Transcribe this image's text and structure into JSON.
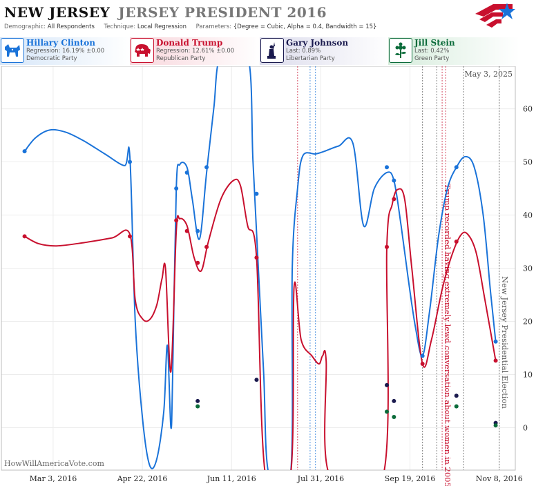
{
  "header": {
    "title": "NEW JERSEY",
    "subtitle": "JERSEY PRESIDENT 2016",
    "demographic_label": "Demographic:",
    "demographic_value": "All Respondents",
    "technique_label": "Technique:",
    "technique_value": "Local Regression",
    "parameters_label": "Parameters:",
    "parameters_value": "{Degree = Cubic, Alpha = 0.4, Bandwidth = 15}"
  },
  "candidates": [
    {
      "name": "Hillary Clinton",
      "line1": "Regression: 16.19% ±0.00",
      "line2": "Democratic Party",
      "color": "#1a73d9",
      "icon": "donkey-icon"
    },
    {
      "name": "Donald Trump",
      "line1": "Regression: 12.61% ±0.00",
      "line2": "Republican Party",
      "color": "#c8102e",
      "icon": "elephant-icon"
    },
    {
      "name": "Gary Johnson",
      "line1": "Last: 0.89%",
      "line2": "Libertarian Party",
      "color": "#1a1a4e",
      "icon": "statue-of-liberty-icon"
    },
    {
      "name": "Jill Stein",
      "line1": "Last: 0.42%",
      "line2": "Green Party",
      "color": "#0b6b3a",
      "icon": "flower-icon"
    }
  ],
  "watermark": "HowWillAmericaVote.com",
  "chart_data": {
    "type": "line",
    "date_label": "May 3, 2025",
    "x_range": [
      "2016-02-03",
      "2016-11-17"
    ],
    "ylim": [
      -8,
      68
    ],
    "y_ticks": [
      0,
      10,
      20,
      30,
      40,
      50,
      60
    ],
    "x_ticks": [
      {
        "date": "2016-03-03",
        "label": "Mar 3, 2016"
      },
      {
        "date": "2016-04-22",
        "label": "Apr 22, 2016"
      },
      {
        "date": "2016-06-11",
        "label": "Jun 11, 2016"
      },
      {
        "date": "2016-07-31",
        "label": "Jul 31, 2016"
      },
      {
        "date": "2016-09-19",
        "label": "Sep 19, 2016"
      },
      {
        "date": "2016-11-08",
        "label": "Nov 8, 2016"
      }
    ],
    "annotations": [
      {
        "date": "2016-10-07",
        "text": "Trump recorded having extremely lewd conversation about women in 2005",
        "color": "#c8102e"
      },
      {
        "date": "2016-11-08",
        "text": "New Jersey Presidential Election",
        "color": "#555555"
      }
    ],
    "event_lines": [
      {
        "date": "2016-07-18",
        "color": "#c8102e"
      },
      {
        "date": "2016-07-25",
        "color": "#1a73d9"
      },
      {
        "date": "2016-07-28",
        "color": "#1a73d9"
      },
      {
        "date": "2016-09-26",
        "color": "#555555"
      },
      {
        "date": "2016-10-04",
        "color": "#555555"
      },
      {
        "date": "2016-10-07",
        "color": "#c8102e"
      },
      {
        "date": "2016-10-09",
        "color": "#c8102e"
      },
      {
        "date": "2016-10-19",
        "color": "#555555"
      },
      {
        "date": "2016-11-08",
        "color": "#555555"
      }
    ],
    "series": [
      {
        "name": "Hillary Clinton",
        "color": "#1a73d9",
        "points": [
          {
            "x": "2016-02-16",
            "y": 52
          },
          {
            "x": "2016-04-15",
            "y": 50
          },
          {
            "x": "2016-05-11",
            "y": 45
          },
          {
            "x": "2016-05-17",
            "y": 48
          },
          {
            "x": "2016-05-23",
            "y": 37
          },
          {
            "x": "2016-05-28",
            "y": 49
          },
          {
            "x": "2016-06-25",
            "y": 44
          },
          {
            "x": "2016-09-06",
            "y": 49
          },
          {
            "x": "2016-09-10",
            "y": 46.5
          },
          {
            "x": "2016-09-26",
            "y": 13.5
          },
          {
            "x": "2016-10-15",
            "y": 49
          },
          {
            "x": "2016-11-06",
            "y": 16.19
          }
        ],
        "curve": [
          [
            "2016-02-16",
            52
          ],
          [
            "2016-02-22",
            54.5
          ],
          [
            "2016-03-01",
            56
          ],
          [
            "2016-03-10",
            55.6
          ],
          [
            "2016-03-20",
            54
          ],
          [
            "2016-04-01",
            51.5
          ],
          [
            "2016-04-12",
            49.3
          ],
          [
            "2016-04-15",
            51
          ],
          [
            "2016-04-18",
            20
          ],
          [
            "2016-04-22",
            2
          ],
          [
            "2016-04-26",
            -7
          ],
          [
            "2016-04-30",
            -6
          ],
          [
            "2016-05-04",
            3
          ],
          [
            "2016-05-06",
            15.5
          ],
          [
            "2016-05-08",
            0
          ],
          [
            "2016-05-09",
            10
          ],
          [
            "2016-05-11",
            45
          ],
          [
            "2016-05-13",
            49.5
          ],
          [
            "2016-05-17",
            49
          ],
          [
            "2016-05-20",
            43
          ],
          [
            "2016-05-24",
            35.5
          ],
          [
            "2016-05-28",
            48
          ],
          [
            "2016-06-01",
            60
          ],
          [
            "2016-06-05",
            70
          ],
          [
            "2016-06-20",
            70
          ],
          [
            "2016-06-23",
            50
          ],
          [
            "2016-06-26",
            30
          ],
          [
            "2016-06-29",
            10
          ],
          [
            "2016-07-02",
            -9
          ],
          [
            "2016-07-14",
            -9
          ],
          [
            "2016-07-15",
            30
          ],
          [
            "2016-07-18",
            45
          ],
          [
            "2016-07-21",
            51.2
          ],
          [
            "2016-07-28",
            51.5
          ],
          [
            "2016-08-02",
            52
          ],
          [
            "2016-08-10",
            53
          ],
          [
            "2016-08-18",
            53.5
          ],
          [
            "2016-08-24",
            38
          ],
          [
            "2016-08-30",
            45
          ],
          [
            "2016-09-06",
            48
          ],
          [
            "2016-09-10",
            46.5
          ],
          [
            "2016-09-14",
            38
          ],
          [
            "2016-09-18",
            28
          ],
          [
            "2016-09-22",
            19
          ],
          [
            "2016-09-26",
            13.5
          ],
          [
            "2016-09-30",
            22
          ],
          [
            "2016-10-05",
            36
          ],
          [
            "2016-10-10",
            45
          ],
          [
            "2016-10-15",
            49
          ],
          [
            "2016-10-20",
            51
          ],
          [
            "2016-10-25",
            49
          ],
          [
            "2016-10-30",
            40
          ],
          [
            "2016-11-03",
            26
          ],
          [
            "2016-11-06",
            16.19
          ]
        ]
      },
      {
        "name": "Donald Trump",
        "color": "#c8102e",
        "points": [
          {
            "x": "2016-02-16",
            "y": 36
          },
          {
            "x": "2016-04-15",
            "y": 36
          },
          {
            "x": "2016-05-11",
            "y": 39
          },
          {
            "x": "2016-05-17",
            "y": 37
          },
          {
            "x": "2016-05-23",
            "y": 31
          },
          {
            "x": "2016-05-28",
            "y": 34
          },
          {
            "x": "2016-06-25",
            "y": 32
          },
          {
            "x": "2016-09-06",
            "y": 34
          },
          {
            "x": "2016-09-10",
            "y": 43
          },
          {
            "x": "2016-09-26",
            "y": 12
          },
          {
            "x": "2016-10-15",
            "y": 35
          },
          {
            "x": "2016-11-06",
            "y": 12.61
          }
        ],
        "curve": [
          [
            "2016-02-16",
            36
          ],
          [
            "2016-02-24",
            34.6
          ],
          [
            "2016-03-05",
            34.2
          ],
          [
            "2016-03-20",
            34.8
          ],
          [
            "2016-04-05",
            35.7
          ],
          [
            "2016-04-15",
            36.4
          ],
          [
            "2016-04-18",
            24
          ],
          [
            "2016-04-22",
            20.5
          ],
          [
            "2016-04-26",
            20.3
          ],
          [
            "2016-04-30",
            23
          ],
          [
            "2016-05-03",
            28
          ],
          [
            "2016-05-05",
            29.8
          ],
          [
            "2016-05-08",
            10.5
          ],
          [
            "2016-05-11",
            37
          ],
          [
            "2016-05-13",
            39.3
          ],
          [
            "2016-05-17",
            38
          ],
          [
            "2016-05-21",
            32
          ],
          [
            "2016-05-25",
            29.5
          ],
          [
            "2016-05-29",
            35
          ],
          [
            "2016-06-05",
            43
          ],
          [
            "2016-06-12",
            46.5
          ],
          [
            "2016-06-16",
            45.5
          ],
          [
            "2016-06-20",
            38
          ],
          [
            "2016-06-25",
            32
          ],
          [
            "2016-06-30",
            -9
          ],
          [
            "2016-07-14",
            -9
          ],
          [
            "2016-07-16",
            26.5
          ],
          [
            "2016-07-20",
            16.5
          ],
          [
            "2016-07-26",
            13.5
          ],
          [
            "2016-07-30",
            12
          ],
          [
            "2016-08-01",
            13.5
          ],
          [
            "2016-08-03",
            12.5
          ],
          [
            "2016-08-05",
            -9
          ],
          [
            "2016-09-04",
            -9
          ],
          [
            "2016-09-06",
            34
          ],
          [
            "2016-09-09",
            42
          ],
          [
            "2016-09-12",
            44.8
          ],
          [
            "2016-09-16",
            43
          ],
          [
            "2016-09-20",
            30
          ],
          [
            "2016-09-26",
            12
          ],
          [
            "2016-10-01",
            16.5
          ],
          [
            "2016-10-07",
            26
          ],
          [
            "2016-10-12",
            32
          ],
          [
            "2016-10-17",
            36
          ],
          [
            "2016-10-21",
            36.5
          ],
          [
            "2016-10-26",
            33
          ],
          [
            "2016-10-31",
            24
          ],
          [
            "2016-11-06",
            12.61
          ]
        ]
      },
      {
        "name": "Gary Johnson",
        "color": "#1a1a4e",
        "points": [
          {
            "x": "2016-05-23",
            "y": 5
          },
          {
            "x": "2016-06-25",
            "y": 9
          },
          {
            "x": "2016-09-06",
            "y": 8
          },
          {
            "x": "2016-09-10",
            "y": 5
          },
          {
            "x": "2016-10-15",
            "y": 6
          },
          {
            "x": "2016-11-06",
            "y": 0.89
          }
        ]
      },
      {
        "name": "Jill Stein",
        "color": "#0b6b3a",
        "points": [
          {
            "x": "2016-05-23",
            "y": 4
          },
          {
            "x": "2016-09-06",
            "y": 3
          },
          {
            "x": "2016-09-10",
            "y": 2
          },
          {
            "x": "2016-10-15",
            "y": 4
          },
          {
            "x": "2016-11-06",
            "y": 0.42
          }
        ]
      }
    ]
  }
}
